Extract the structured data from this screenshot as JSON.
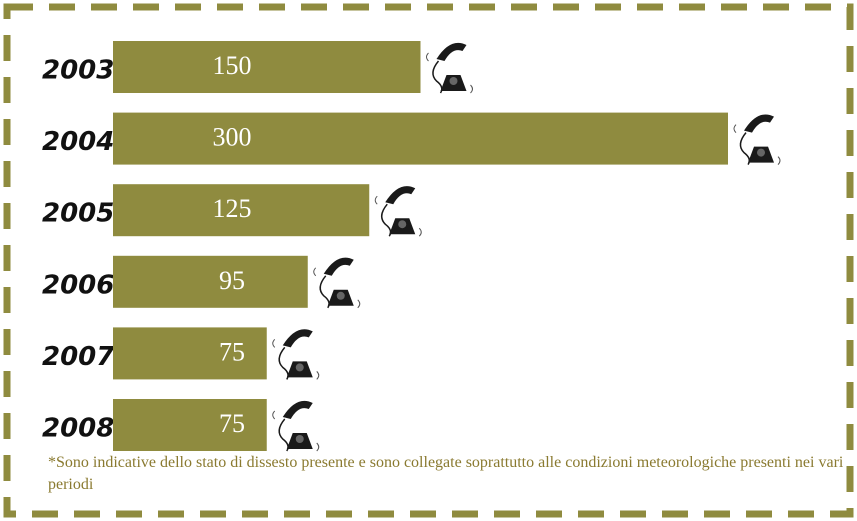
{
  "chart_data": {
    "type": "bar",
    "orientation": "horizontal",
    "categories": [
      "2003",
      "2004",
      "2005",
      "2006",
      "2007",
      "2008"
    ],
    "values": [
      150,
      300,
      125,
      95,
      75,
      75
    ],
    "color": "#8f8b3f",
    "note": "*Sono indicative dello stato di dissesto presente e sono collegate soprattutto alle condizioni meteorologiche presenti nei vari periodi"
  }
}
